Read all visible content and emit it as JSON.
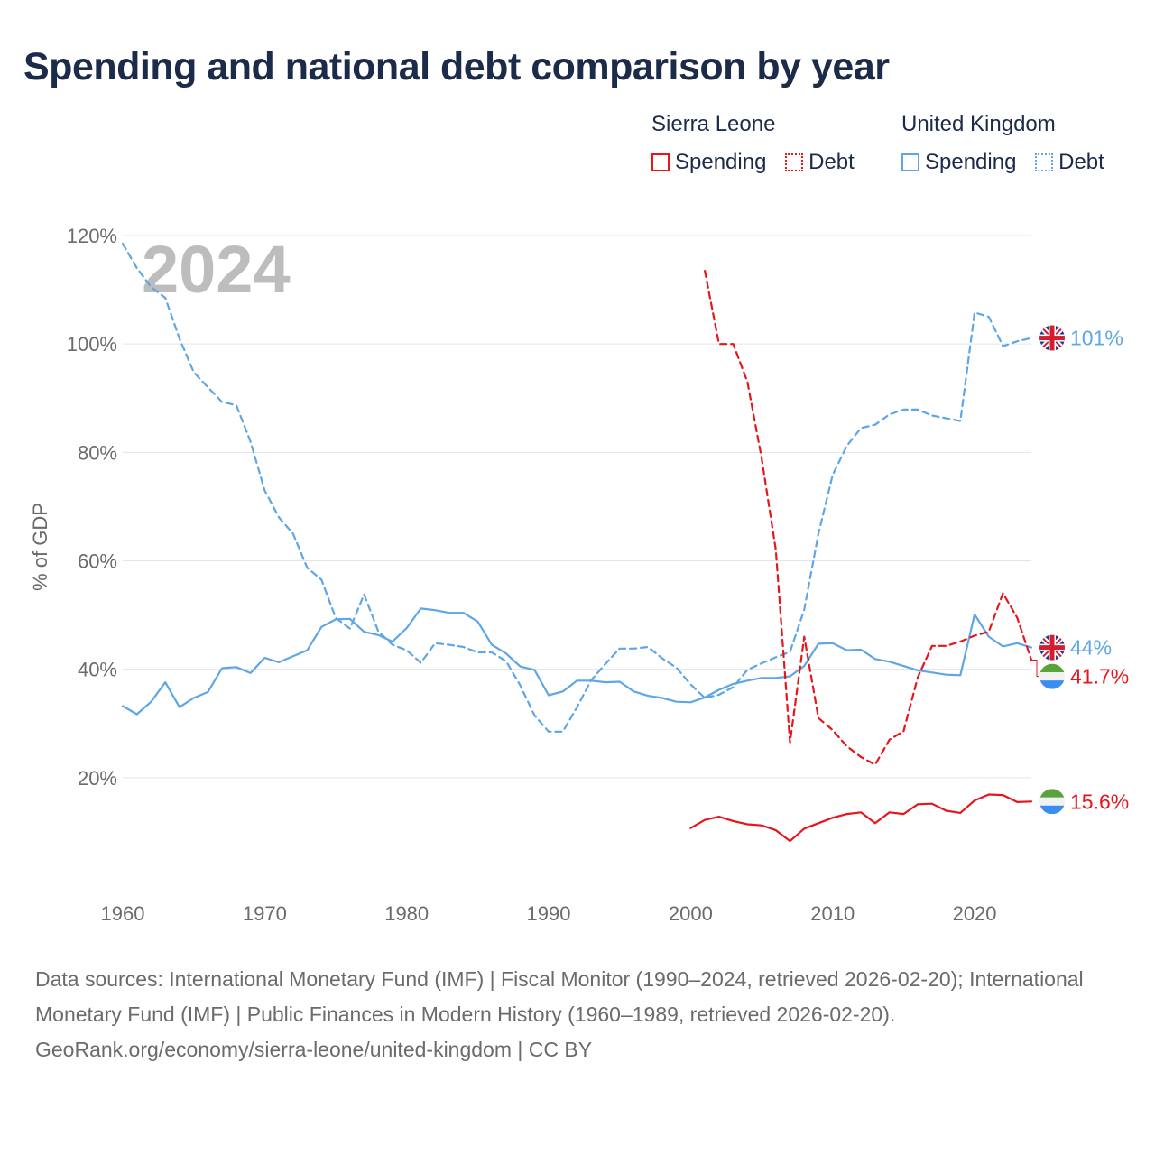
{
  "title": "Spending and national debt comparison by year",
  "legend": [
    {
      "group": "Sierra Leone",
      "color": "#e8151b",
      "items": [
        {
          "label": "Spending",
          "style": "solid"
        },
        {
          "label": "Debt",
          "style": "dotted"
        }
      ]
    },
    {
      "group": "United Kingdom",
      "color": "#5ea6e6",
      "items": [
        {
          "label": "Spending",
          "style": "solid"
        },
        {
          "label": "Debt",
          "style": "dotted"
        }
      ]
    }
  ],
  "chart_data": {
    "type": "line",
    "ylabel": "% of GDP",
    "year_label": "2024",
    "xlim": [
      1960,
      2024
    ],
    "ylim": [
      0,
      120
    ],
    "x_ticks": [
      1960,
      1970,
      1980,
      1990,
      2000,
      2010,
      2020
    ],
    "y_ticks": [
      20,
      40,
      60,
      80,
      100,
      120
    ],
    "y_tick_labels": [
      "20%",
      "40%",
      "60%",
      "80%",
      "100%",
      "120%"
    ],
    "series": [
      {
        "name": "United Kingdom Spending",
        "color": "#5ea6e6",
        "dash": "solid",
        "start": 1960,
        "values": [
          33.2,
          31.7,
          34.0,
          37.6,
          33.0,
          34.7,
          35.8,
          40.2,
          40.4,
          39.3,
          42.1,
          41.3,
          42.4,
          43.5,
          47.8,
          49.2,
          49.3,
          46.9,
          46.3,
          45.1,
          47.6,
          51.2,
          50.9,
          50.4,
          50.4,
          48.8,
          44.5,
          42.9,
          40.5,
          39.9,
          35.2,
          35.9,
          37.9,
          37.9,
          37.6,
          37.7,
          35.9,
          35.1,
          34.7,
          34.0,
          33.9,
          34.8,
          36.2,
          37.3,
          37.9,
          38.4,
          38.4,
          38.7,
          40.6,
          44.7,
          44.8,
          43.5,
          43.6,
          41.9,
          41.4,
          40.6,
          39.8,
          39.4,
          39.0,
          38.9,
          50.1,
          46.0,
          44.2,
          44.8,
          44.0
        ]
      },
      {
        "name": "United Kingdom Debt",
        "color": "#5ea6e6",
        "dash": "dashed",
        "start": 1960,
        "values": [
          118.5,
          114.0,
          110.5,
          108.5,
          101.0,
          94.8,
          92.0,
          89.3,
          88.7,
          82.0,
          73.0,
          68.0,
          65.0,
          58.7,
          56.5,
          49.5,
          47.5,
          53.8,
          47.0,
          44.5,
          43.5,
          41.2,
          44.8,
          44.5,
          44.1,
          43.1,
          43.1,
          41.5,
          37.0,
          31.5,
          28.5,
          28.5,
          33.0,
          38.0,
          41.0,
          43.8,
          43.8,
          44.1,
          42.0,
          40.3,
          37.2,
          34.7,
          35.3,
          36.7,
          39.9,
          41.1,
          42.2,
          43.2,
          51.0,
          65.0,
          75.8,
          81.2,
          84.5,
          85.1,
          87.0,
          87.9,
          87.9,
          86.8,
          86.3,
          85.8,
          105.8,
          105.0,
          99.6,
          100.5,
          101.1
        ]
      },
      {
        "name": "Sierra Leone Spending",
        "color": "#e8151b",
        "dash": "solid",
        "start": 2000,
        "values": [
          10.7,
          12.2,
          12.8,
          12.0,
          11.4,
          11.2,
          10.3,
          8.3,
          10.6,
          11.6,
          12.6,
          13.3,
          13.6,
          11.6,
          13.6,
          13.3,
          15.1,
          15.2,
          13.9,
          13.5,
          15.8,
          16.9,
          16.8,
          15.5,
          15.6
        ]
      },
      {
        "name": "Sierra Leone Debt",
        "color": "#e8151b",
        "dash": "dashed",
        "start": 2001,
        "values": [
          113.5,
          100.0,
          100.0,
          93.0,
          79.0,
          62.0,
          26.5,
          46.0,
          31.0,
          28.8,
          25.8,
          23.8,
          22.4,
          27.0,
          28.6,
          38.5,
          44.3,
          44.3,
          45.1,
          46.2,
          46.9,
          54.0,
          49.5,
          41.7
        ]
      }
    ],
    "end_labels": [
      {
        "text": "101%",
        "color": "#5ea6e6",
        "value": 101.1,
        "flag": "united-kingdom"
      },
      {
        "text": "44%",
        "color": "#5ea6e6",
        "value": 44.0,
        "flag": "united-kingdom"
      },
      {
        "text": "41.7%",
        "color": "#e8151b",
        "value": 41.7,
        "flag": "sierra-leone"
      },
      {
        "text": "15.6%",
        "color": "#e8151b",
        "value": 15.6,
        "flag": "sierra-leone"
      }
    ]
  },
  "footer": {
    "sources": "Data sources: International Monetary Fund (IMF) | Fiscal Monitor (1990–2024, retrieved 2026-02-20); International Monetary Fund (IMF) | Public Finances in Modern History (1960–1989, retrieved 2026-02-20).",
    "attribution": "GeoRank.org/economy/sierra-leone/united-kingdom | CC BY"
  }
}
